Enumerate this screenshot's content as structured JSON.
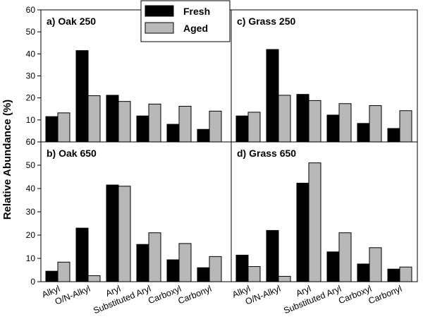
{
  "ylabel": "Relative Abundance (%)",
  "legend": [
    {
      "name": "Fresh",
      "color": "#000000"
    },
    {
      "name": "Aged",
      "color": "#b8b8b8"
    }
  ],
  "chart_data": [
    {
      "type": "bar",
      "title": "a) Oak 250",
      "categories": [
        "Alkyl",
        "O/N-Alkyl",
        "Aryl",
        "Substituted Aryl",
        "Carboxyl",
        "Carbonyl"
      ],
      "series": [
        {
          "name": "Fresh",
          "values": [
            11.5,
            41.5,
            21.2,
            11.8,
            8.0,
            5.7
          ]
        },
        {
          "name": "Aged",
          "values": [
            13.2,
            21.0,
            18.4,
            17.2,
            16.2,
            14.0
          ]
        }
      ],
      "ylim": [
        0,
        60
      ],
      "yticks": [
        0,
        10,
        20,
        30,
        40,
        50,
        60
      ]
    },
    {
      "type": "bar",
      "title": "c) Grass 250",
      "categories": [
        "Alkyl",
        "O/N-Alkyl",
        "Aryl",
        "Substituted Aryl",
        "Carboxyl",
        "Carbonyl"
      ],
      "series": [
        {
          "name": "Fresh",
          "values": [
            11.8,
            42.0,
            21.6,
            12.2,
            8.4,
            6.1
          ]
        },
        {
          "name": "Aged",
          "values": [
            13.5,
            21.2,
            18.8,
            17.4,
            16.5,
            14.2
          ]
        }
      ],
      "ylim": [
        0,
        60
      ],
      "yticks": [
        0,
        10,
        20,
        30,
        40,
        50,
        60
      ]
    },
    {
      "type": "bar",
      "title": "b) Oak 650",
      "categories": [
        "Alkyl",
        "O/N-Alkyl",
        "Aryl",
        "Substituted Aryl",
        "Carboxyl",
        "Carbonyl"
      ],
      "series": [
        {
          "name": "Fresh",
          "values": [
            4.5,
            23.0,
            41.5,
            16.0,
            9.4,
            6.0
          ]
        },
        {
          "name": "Aged",
          "values": [
            8.4,
            2.6,
            41.0,
            21.0,
            16.4,
            10.8
          ]
        }
      ],
      "ylim": [
        0,
        60
      ],
      "yticks": [
        0,
        10,
        20,
        30,
        40,
        50,
        60
      ]
    },
    {
      "type": "bar",
      "title": "d) Grass 650",
      "categories": [
        "Alkyl",
        "O/N-Alkyl",
        "Aryl",
        "Substituted Aryl",
        "Carboxyl",
        "Carbonyl"
      ],
      "series": [
        {
          "name": "Fresh",
          "values": [
            11.4,
            22.0,
            42.3,
            12.8,
            7.6,
            5.4
          ]
        },
        {
          "name": "Aged",
          "values": [
            6.5,
            2.3,
            51.0,
            21.0,
            14.6,
            6.3
          ]
        }
      ],
      "ylim": [
        0,
        60
      ],
      "yticks": [
        0,
        10,
        20,
        30,
        40,
        50,
        60
      ]
    }
  ]
}
